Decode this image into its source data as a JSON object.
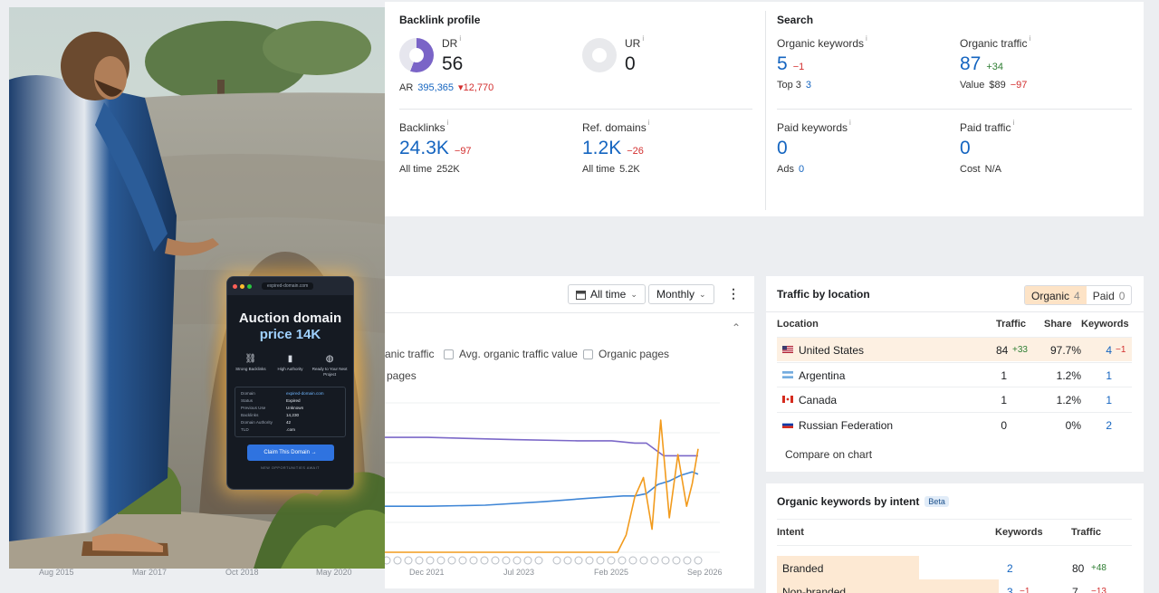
{
  "backlink_profile": {
    "title": "Backlink profile",
    "dr": {
      "label": "DR",
      "value": "56",
      "level": 0.56,
      "sub_label": "AR",
      "sub_value": "395,365",
      "sub_delta": "12,770",
      "delta_arrow": "▾"
    },
    "ur": {
      "label": "UR",
      "value": "0"
    },
    "backlinks": {
      "label": "Backlinks",
      "value": "24.3K",
      "delta": "−97",
      "sub_label": "All time",
      "sub_value": "252K"
    },
    "ref_domains": {
      "label": "Ref. domains",
      "value": "1.2K",
      "delta": "−26",
      "sub_label": "All time",
      "sub_value": "5.2K"
    }
  },
  "search": {
    "title": "Search",
    "organic_keywords": {
      "label": "Organic keywords",
      "value": "5",
      "delta": "−1",
      "sub_label": "Top 3",
      "sub_value": "3"
    },
    "organic_traffic": {
      "label": "Organic traffic",
      "value": "87",
      "delta": "+34",
      "sub_label": "Value",
      "sub_value": "$89",
      "sub_delta": "−97"
    },
    "paid_keywords": {
      "label": "Paid keywords",
      "value": "0",
      "sub_label": "Ads",
      "sub_value": "0"
    },
    "paid_traffic": {
      "label": "Paid traffic",
      "value": "0",
      "sub_label": "Cost",
      "sub_value": "N/A"
    }
  },
  "chart_controls": {
    "range": "All time",
    "interval": "Monthly"
  },
  "chart_legend": [
    {
      "label": "anic traffic"
    },
    {
      "label": "Avg. organic traffic value"
    },
    {
      "label": "Organic pages"
    },
    {
      "label": "pages"
    }
  ],
  "chart_data": {
    "type": "line",
    "x_tick_labels": [
      "Aug 2015",
      "Mar 2017",
      "Oct 2018",
      "May 2020",
      "Dec 2021",
      "Jul 2023",
      "Feb 2025",
      "Sep 2026"
    ],
    "series": [
      {
        "color": "#7b68c8",
        "x": [
          2015.6,
          2017.2,
          2018.8,
          2020.4,
          2022.0,
          2023.5,
          2024.6,
          2025.2,
          2025.4,
          2025.6,
          2025.8,
          2026.1,
          2026.5,
          2026.7
        ],
        "y": [
          100,
          100,
          100,
          100,
          100,
          98,
          97,
          97,
          96,
          95,
          95,
          84,
          84,
          84
        ]
      },
      {
        "color": "#3f86d6",
        "x": [
          2015.6,
          2017.2,
          2018.8,
          2020.4,
          2022.0,
          2023.0,
          2024.0,
          2024.8,
          2025.4,
          2025.6,
          2025.8,
          2026.0,
          2026.2,
          2026.4,
          2026.6,
          2026.7
        ],
        "y": [
          40,
          40,
          40,
          40,
          40,
          41,
          44,
          47,
          49,
          49,
          51,
          59,
          62,
          67,
          70,
          68
        ]
      },
      {
        "color": "#f29b1d",
        "x": [
          2015.6,
          2025.3,
          2025.45,
          2025.6,
          2025.75,
          2025.9,
          2026.05,
          2026.2,
          2026.35,
          2026.5,
          2026.6,
          2026.7
        ],
        "y": [
          0,
          0,
          15,
          48,
          65,
          20,
          115,
          30,
          85,
          40,
          60,
          90
        ]
      }
    ],
    "ylim": [
      0,
      130
    ],
    "grid": true
  },
  "traffic_by_location": {
    "title": "Traffic by location",
    "toggle": [
      {
        "label": "Organic",
        "count": "4",
        "active": true
      },
      {
        "label": "Paid",
        "count": "0",
        "active": false
      }
    ],
    "columns": [
      "Location",
      "Traffic",
      "Share",
      "Keywords"
    ],
    "rows": [
      {
        "flag": "us",
        "country": "United States",
        "traffic": "84",
        "traffic_delta": "+33",
        "share": "97.7%",
        "keywords": "4",
        "keywords_delta": "−1",
        "highlight": true
      },
      {
        "flag": "ar",
        "country": "Argentina",
        "traffic": "1",
        "traffic_delta": "",
        "share": "1.2%",
        "keywords": "1",
        "keywords_delta": "",
        "highlight": false
      },
      {
        "flag": "ca",
        "country": "Canada",
        "traffic": "1",
        "traffic_delta": "",
        "share": "1.2%",
        "keywords": "1",
        "keywords_delta": "",
        "highlight": false
      },
      {
        "flag": "ru",
        "country": "Russian Federation",
        "traffic": "0",
        "traffic_delta": "",
        "share": "0%",
        "keywords": "2",
        "keywords_delta": "",
        "highlight": false
      }
    ],
    "compare_link": "Compare on chart"
  },
  "keywords_by_intent": {
    "title": "Organic keywords by intent",
    "badge": "Beta",
    "columns": [
      "Intent",
      "Keywords",
      "Traffic"
    ],
    "rows": [
      {
        "intent": "Branded",
        "keywords": "2",
        "traffic": "80",
        "traffic_delta": "+48",
        "share": 0.4
      },
      {
        "intent": "Non-branded",
        "keywords": "3",
        "keywords_delta": "−1",
        "traffic": "7",
        "traffic_delta": "−13",
        "share": 0.6
      }
    ]
  },
  "ad_overlay": {
    "url": "expired-domain.com",
    "headline": "Auction domain",
    "price": "price 14K",
    "features": [
      {
        "icon": "link-icon",
        "label": "Strong Backlinks"
      },
      {
        "icon": "bars-icon",
        "label": "High Authority"
      },
      {
        "icon": "globe-icon",
        "label": "Ready to Your Next Project"
      }
    ],
    "details": [
      {
        "k": "Domain",
        "v": "expired-domain.com"
      },
      {
        "k": "Status",
        "v": "Expired"
      },
      {
        "k": "Previous Use",
        "v": "Unknown"
      },
      {
        "k": "Backlinks",
        "v": "14,230"
      },
      {
        "k": "Domain Authority",
        "v": "42"
      },
      {
        "k": "TLD",
        "v": ".com"
      }
    ],
    "button": "Claim This Domain →",
    "footer": "NEW OPPORTUNITIES AWAIT"
  }
}
